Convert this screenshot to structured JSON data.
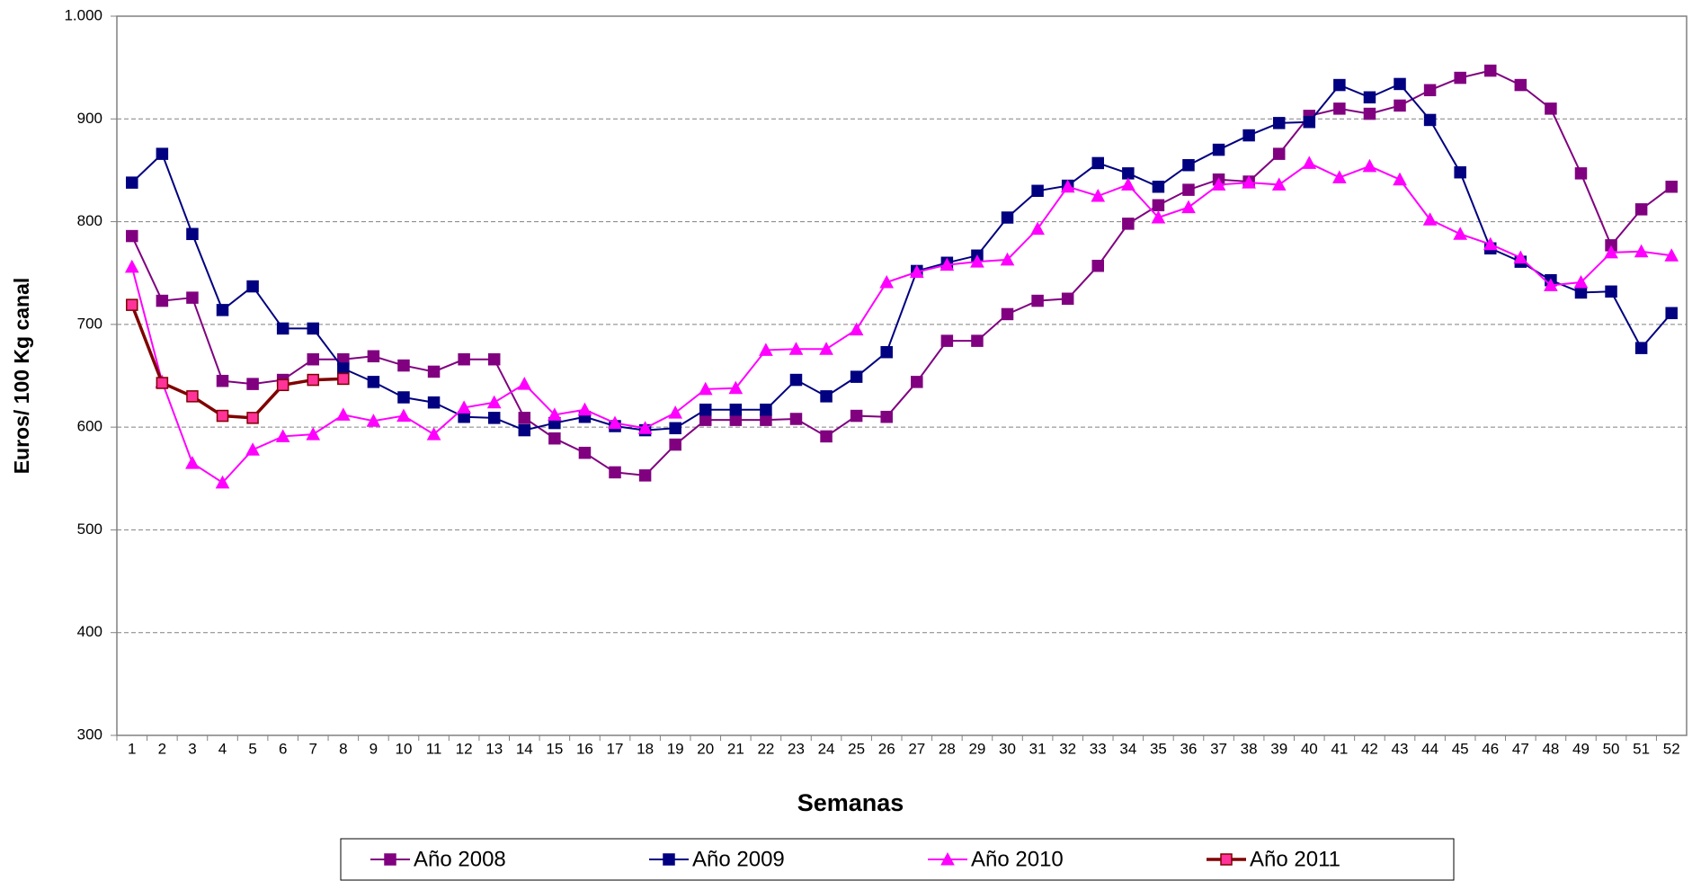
{
  "chart_data": {
    "type": "line",
    "x_label": "Semanas",
    "y_label": "Euros/ 100 Kg canal",
    "categories": [
      1,
      2,
      3,
      4,
      5,
      6,
      7,
      8,
      9,
      10,
      11,
      12,
      13,
      14,
      15,
      16,
      17,
      18,
      19,
      20,
      21,
      22,
      23,
      24,
      25,
      26,
      27,
      28,
      29,
      30,
      31,
      32,
      33,
      34,
      35,
      36,
      37,
      38,
      39,
      40,
      41,
      42,
      43,
      44,
      45,
      46,
      47,
      48,
      49,
      50,
      51,
      52
    ],
    "ylim": [
      300,
      1000
    ],
    "yticks": [
      300,
      400,
      500,
      600,
      700,
      800,
      900,
      {
        "value": 1000,
        "label": "1.000"
      }
    ],
    "grid": true,
    "legend": "bottom",
    "series": [
      {
        "name": "Año 2008",
        "color": "#800080",
        "marker": "square",
        "marker_fill": "#800080",
        "values": [
          786,
          723,
          726,
          645,
          642,
          646,
          666,
          666,
          669,
          660,
          654,
          666,
          666,
          609,
          589,
          575,
          556,
          553,
          583,
          607,
          607,
          607,
          608,
          591,
          611,
          610,
          644,
          684,
          684,
          710,
          723,
          725,
          757,
          798,
          816,
          831,
          841,
          839,
          866,
          903,
          910,
          905,
          913,
          928,
          940,
          947,
          933,
          910,
          847,
          777,
          812,
          834
        ]
      },
      {
        "name": "Año 2009",
        "color": "#000080",
        "marker": "square",
        "marker_fill": "#000080",
        "values": [
          838,
          866,
          788,
          714,
          737,
          696,
          696,
          657,
          644,
          629,
          624,
          610,
          609,
          597,
          604,
          610,
          601,
          597,
          599,
          617,
          617,
          617,
          646,
          630,
          649,
          673,
          752,
          760,
          767,
          804,
          830,
          835,
          857,
          847,
          834,
          855,
          870,
          884,
          896,
          897,
          933,
          921,
          934,
          899,
          848,
          774,
          761,
          743,
          731,
          732,
          677,
          711
        ]
      },
      {
        "name": "Año 2010",
        "color": "#ff00ff",
        "marker": "triangle",
        "marker_fill": "#ff00ff",
        "values": [
          756,
          644,
          565,
          546,
          578,
          591,
          593,
          612,
          606,
          611,
          593,
          619,
          624,
          642,
          612,
          617,
          604,
          599,
          614,
          637,
          638,
          675,
          676,
          676,
          695,
          741,
          751,
          758,
          761,
          763,
          793,
          834,
          825,
          836,
          804,
          814,
          836,
          838,
          836,
          857,
          843,
          854,
          841,
          802,
          788,
          778,
          765,
          738,
          741,
          770,
          771,
          767
        ]
      },
      {
        "name": "Año 2011",
        "color": "#800000",
        "marker": "square",
        "marker_fill": "#ff3399",
        "values": [
          719,
          643,
          630,
          611,
          609,
          641,
          646,
          647,
          null,
          null,
          null,
          null,
          null,
          null,
          null,
          null,
          null,
          null,
          null,
          null,
          null,
          null,
          null,
          null,
          null,
          null,
          null,
          null,
          null,
          null,
          null,
          null,
          null,
          null,
          null,
          null,
          null,
          null,
          null,
          null,
          null,
          null,
          null,
          null,
          null,
          null,
          null,
          null,
          null,
          null,
          null,
          null
        ]
      }
    ]
  }
}
